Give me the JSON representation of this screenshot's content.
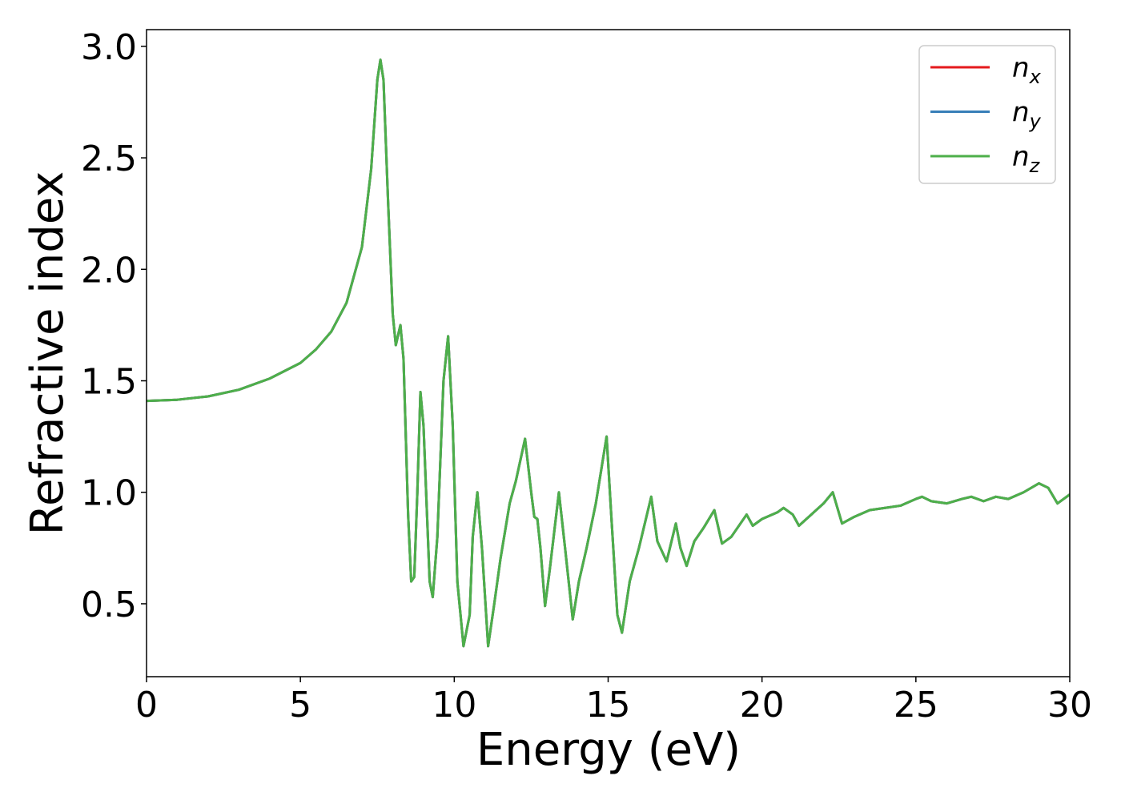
{
  "chart_data": {
    "type": "line",
    "x_label": "Energy (eV)",
    "y_label": "Refractive index",
    "x": [
      0,
      1,
      2,
      3,
      4,
      5,
      5.5,
      6,
      6.5,
      7,
      7.3,
      7.5,
      7.6,
      7.7,
      7.85,
      8.0,
      8.1,
      8.2,
      8.25,
      8.35,
      8.5,
      8.6,
      8.7,
      8.8,
      8.9,
      9.0,
      9.2,
      9.3,
      9.45,
      9.65,
      9.8,
      9.95,
      10.1,
      10.3,
      10.5,
      10.6,
      10.75,
      10.9,
      11.1,
      11.3,
      11.5,
      11.8,
      12.0,
      12.3,
      12.5,
      12.6,
      12.7,
      12.8,
      12.95,
      13.1,
      13.4,
      13.6,
      13.85,
      14.05,
      14.3,
      14.6,
      14.95,
      15.1,
      15.3,
      15.45,
      15.7,
      16.0,
      16.4,
      16.6,
      16.9,
      17.2,
      17.35,
      17.55,
      17.8,
      18.1,
      18.45,
      18.7,
      19.0,
      19.5,
      19.7,
      20.0,
      20.5,
      20.7,
      21.0,
      21.2,
      21.6,
      22.0,
      22.3,
      22.6,
      23.0,
      23.5,
      24.0,
      24.5,
      25.0,
      25.2,
      25.5,
      26.0,
      26.5,
      26.8,
      27.2,
      27.6,
      28.0,
      28.5,
      29.0,
      29.3,
      29.6,
      30.0
    ],
    "series": [
      {
        "name": "nx",
        "color": "#e41a1c",
        "values": [
          1.41,
          1.415,
          1.43,
          1.46,
          1.51,
          1.58,
          1.64,
          1.72,
          1.85,
          2.1,
          2.45,
          2.85,
          2.94,
          2.85,
          2.3,
          1.8,
          1.66,
          1.72,
          1.75,
          1.6,
          0.9,
          0.6,
          0.62,
          1.0,
          1.45,
          1.3,
          0.6,
          0.53,
          0.8,
          1.5,
          1.7,
          1.3,
          0.6,
          0.31,
          0.45,
          0.8,
          1.0,
          0.75,
          0.31,
          0.5,
          0.7,
          0.95,
          1.05,
          1.24,
          1.0,
          0.89,
          0.88,
          0.75,
          0.49,
          0.65,
          1.0,
          0.75,
          0.43,
          0.6,
          0.75,
          0.95,
          1.25,
          0.9,
          0.45,
          0.37,
          0.6,
          0.75,
          0.98,
          0.78,
          0.69,
          0.86,
          0.75,
          0.67,
          0.78,
          0.84,
          0.92,
          0.77,
          0.8,
          0.9,
          0.85,
          0.88,
          0.91,
          0.93,
          0.9,
          0.85,
          0.9,
          0.95,
          1.0,
          0.86,
          0.89,
          0.92,
          0.93,
          0.94,
          0.97,
          0.98,
          0.96,
          0.95,
          0.97,
          0.98,
          0.96,
          0.98,
          0.97,
          1.0,
          1.04,
          1.02,
          0.95,
          0.99
        ]
      },
      {
        "name": "ny",
        "color": "#377eb8",
        "values": [
          1.41,
          1.415,
          1.43,
          1.46,
          1.51,
          1.58,
          1.64,
          1.72,
          1.85,
          2.1,
          2.45,
          2.85,
          2.94,
          2.85,
          2.3,
          1.8,
          1.66,
          1.72,
          1.75,
          1.6,
          0.9,
          0.6,
          0.62,
          1.0,
          1.45,
          1.3,
          0.6,
          0.53,
          0.8,
          1.5,
          1.7,
          1.3,
          0.6,
          0.31,
          0.45,
          0.8,
          1.0,
          0.75,
          0.31,
          0.5,
          0.7,
          0.95,
          1.05,
          1.24,
          1.0,
          0.89,
          0.88,
          0.75,
          0.49,
          0.65,
          1.0,
          0.75,
          0.43,
          0.6,
          0.75,
          0.95,
          1.25,
          0.9,
          0.45,
          0.37,
          0.6,
          0.75,
          0.98,
          0.78,
          0.69,
          0.86,
          0.75,
          0.67,
          0.78,
          0.84,
          0.92,
          0.77,
          0.8,
          0.9,
          0.85,
          0.88,
          0.91,
          0.93,
          0.9,
          0.85,
          0.9,
          0.95,
          1.0,
          0.86,
          0.89,
          0.92,
          0.93,
          0.94,
          0.97,
          0.98,
          0.96,
          0.95,
          0.97,
          0.98,
          0.96,
          0.98,
          0.97,
          1.0,
          1.04,
          1.02,
          0.95,
          0.99
        ]
      },
      {
        "name": "nz",
        "color": "#4daf4a",
        "values": [
          1.41,
          1.415,
          1.43,
          1.46,
          1.51,
          1.58,
          1.64,
          1.72,
          1.85,
          2.1,
          2.45,
          2.85,
          2.94,
          2.85,
          2.3,
          1.8,
          1.66,
          1.72,
          1.75,
          1.6,
          0.9,
          0.6,
          0.62,
          1.0,
          1.45,
          1.3,
          0.6,
          0.53,
          0.8,
          1.5,
          1.7,
          1.3,
          0.6,
          0.31,
          0.45,
          0.8,
          1.0,
          0.75,
          0.31,
          0.5,
          0.7,
          0.95,
          1.05,
          1.24,
          1.0,
          0.89,
          0.88,
          0.75,
          0.49,
          0.65,
          1.0,
          0.75,
          0.43,
          0.6,
          0.75,
          0.95,
          1.25,
          0.9,
          0.45,
          0.37,
          0.6,
          0.75,
          0.98,
          0.78,
          0.69,
          0.86,
          0.75,
          0.67,
          0.78,
          0.84,
          0.92,
          0.77,
          0.8,
          0.9,
          0.85,
          0.88,
          0.91,
          0.93,
          0.9,
          0.85,
          0.9,
          0.95,
          1.0,
          0.86,
          0.89,
          0.92,
          0.93,
          0.94,
          0.97,
          0.98,
          0.96,
          0.95,
          0.97,
          0.98,
          0.96,
          0.98,
          0.97,
          1.0,
          1.04,
          1.02,
          0.95,
          0.99
        ]
      }
    ],
    "xlim": [
      0,
      30
    ],
    "xticks": [
      0,
      5,
      10,
      15,
      20,
      25,
      30
    ],
    "ylim": [
      0.173,
      3.075
    ],
    "yticks": [
      {
        "value": 0.5,
        "label": "0.5"
      },
      {
        "value": 1.0,
        "label": "1.0"
      },
      {
        "value": 1.5,
        "label": "1.5"
      },
      {
        "value": 2.0,
        "label": "2.0"
      },
      {
        "value": 2.5,
        "label": "2.5"
      },
      {
        "value": 3.0,
        "label": "3.0"
      }
    ],
    "grid": false,
    "legend": "upper right"
  }
}
